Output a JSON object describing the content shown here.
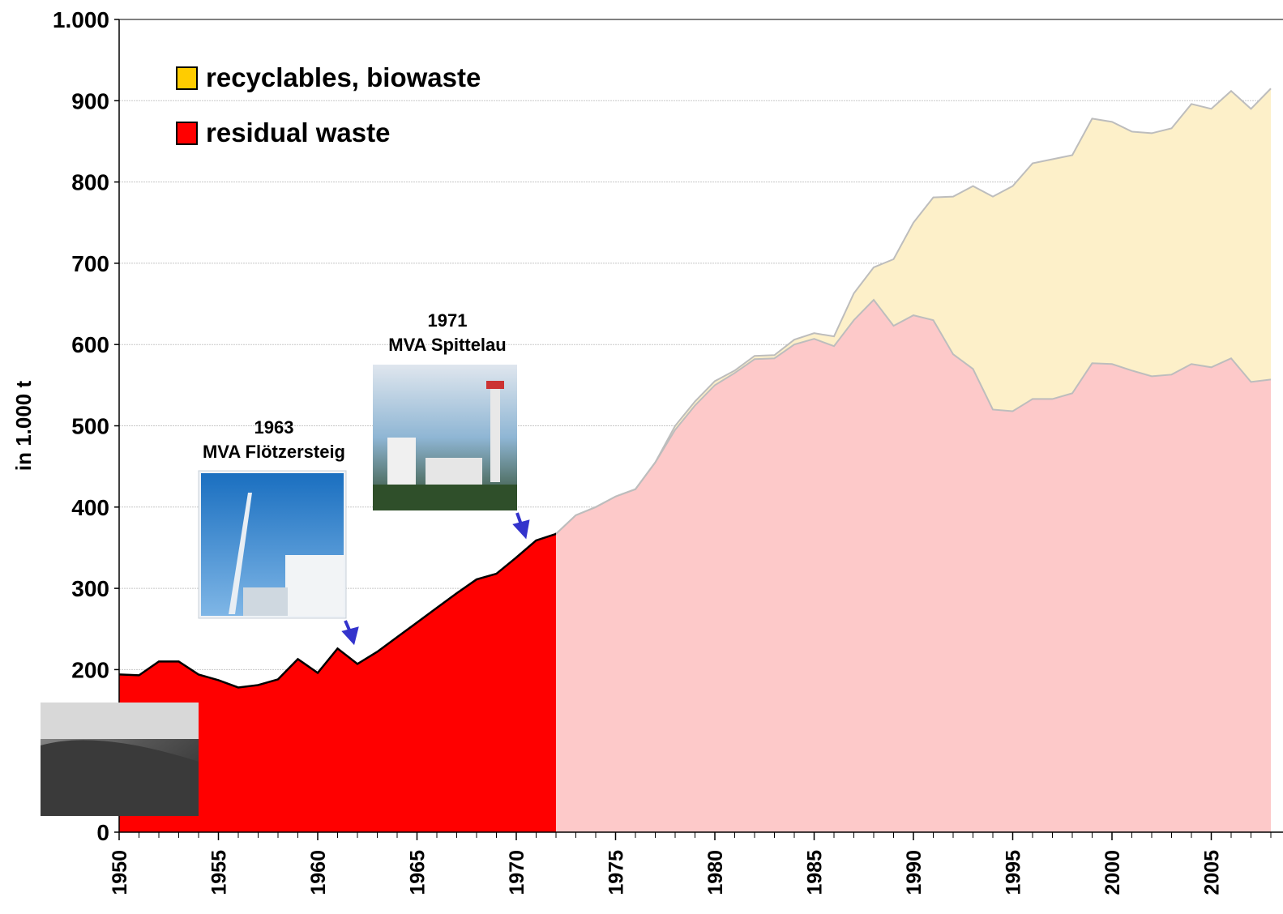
{
  "chart_data": {
    "type": "stacked_area",
    "y_label": "in 1.000 t",
    "x": [
      1950,
      1951,
      1952,
      1953,
      1954,
      1955,
      1956,
      1957,
      1958,
      1959,
      1960,
      1961,
      1962,
      1963,
      1964,
      1965,
      1966,
      1967,
      1968,
      1969,
      1970,
      1971,
      1972,
      1973,
      1974,
      1975,
      1976,
      1977,
      1978,
      1979,
      1980,
      1981,
      1982,
      1983,
      1984,
      1985,
      1986,
      1987,
      1988,
      1989,
      1990,
      1991,
      1992,
      1993,
      1994,
      1995,
      1996,
      1997,
      1998,
      1999,
      2000,
      2001,
      2002,
      2003,
      2004,
      2005,
      2006,
      2007,
      2008
    ],
    "series": [
      {
        "name": "residual waste",
        "color": "#ff0000",
        "faded_color": "#fdc9c9",
        "values": [
          194,
          193,
          210,
          210,
          194,
          187,
          178,
          181,
          188,
          213,
          196,
          226,
          207,
          222,
          240,
          258,
          276,
          294,
          311,
          318,
          338,
          359,
          367,
          390,
          400,
          413,
          422,
          455,
          495,
          525,
          550,
          565,
          582,
          583,
          600,
          607,
          598,
          630,
          655,
          623,
          636,
          630,
          588,
          570,
          520,
          518,
          533,
          533,
          540,
          577,
          576,
          568,
          561,
          563,
          576,
          572,
          583,
          554,
          557
        ]
      },
      {
        "name": "recyclables, biowaste",
        "color": "#ffcc00",
        "faded_color": "#fdf0c9",
        "values": [
          0,
          0,
          0,
          0,
          0,
          0,
          0,
          0,
          0,
          0,
          0,
          0,
          0,
          0,
          0,
          0,
          0,
          0,
          0,
          0,
          0,
          0,
          0,
          0,
          0,
          0,
          0,
          0,
          5,
          5,
          5,
          3,
          4,
          4,
          6,
          7,
          12,
          33,
          40,
          82,
          114,
          151,
          194,
          225,
          262,
          277,
          290,
          295,
          293,
          301,
          298,
          294,
          299,
          303,
          320,
          318,
          329,
          336,
          358
        ]
      }
    ],
    "highlight_xlim": [
      1950,
      1972
    ],
    "xlim": [
      1950,
      2008
    ],
    "xticks": [
      1950,
      1955,
      1960,
      1965,
      1970,
      1975,
      1980,
      1985,
      1990,
      1995,
      2000,
      2005
    ],
    "ylim": [
      0,
      1000
    ],
    "yticks": [
      0,
      100,
      200,
      300,
      400,
      500,
      600,
      700,
      800,
      900,
      {
        "value": 1000,
        "label": "1.000"
      }
    ],
    "grid": true,
    "legend": "top-left",
    "annotations": [
      {
        "year": "1963",
        "text": "MVA Flötzersteig"
      },
      {
        "year": "1971",
        "text": "MVA Spittelau"
      }
    ]
  }
}
